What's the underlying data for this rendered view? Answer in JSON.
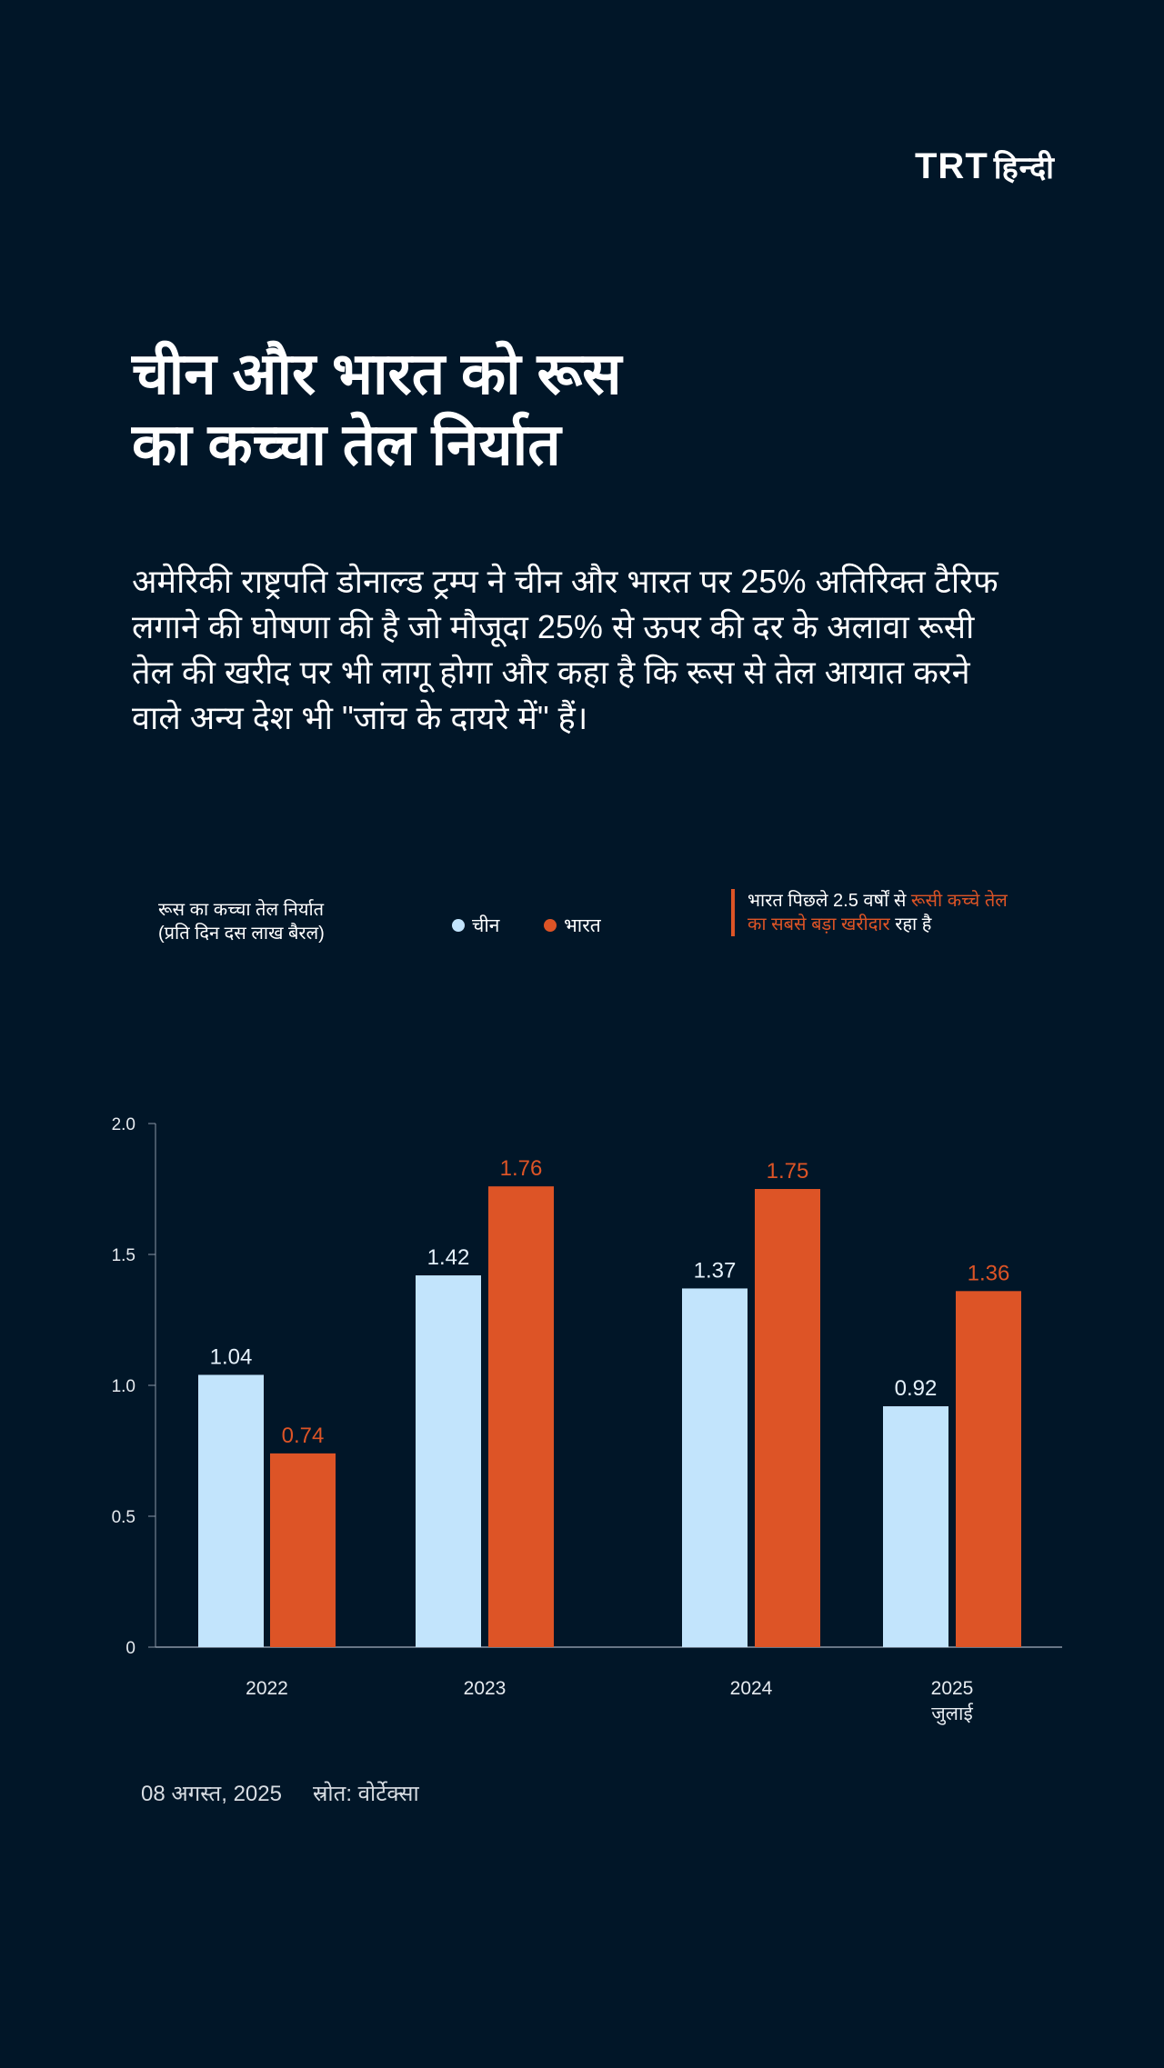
{
  "logo": {
    "brand": "TRT",
    "lang": "हिन्दी"
  },
  "title": [
    "चीन और भारत को रूस",
    "का कच्चा तेल निर्यात"
  ],
  "description": "अमेरिकी राष्ट्रपति डोनाल्ड ट्रम्प ने चीन और भारत पर 25% अतिरिक्त टैरिफ लगाने की घोषणा की है जो मौजूदा 25% से ऊपर की दर के अलावा रूसी तेल की खरीद पर भी लागू होगा और कहा है कि रूस से तेल आयात करने वाले अन्य देश भी \"जांच के दायरे में\" हैं।",
  "note": {
    "part1": "भारत पिछले 2.5 वर्षों से ",
    "highlight": "रूसी कच्चे तेल का सबसे बड़ा खरीदार",
    "part2": " रहा है"
  },
  "footer": {
    "date": "08 अगस्त, 2025",
    "source": "स्रोत: वोर्टेक्सा"
  },
  "colors": {
    "background": "#011628",
    "china": "#c2e4fc",
    "india": "#dd5426"
  },
  "chart_data": {
    "type": "bar",
    "ylabel": [
      "रूस का कच्चा तेल निर्यात",
      "(प्रति दिन दस लाख बैरल)"
    ],
    "categories": [
      "2022",
      "2023",
      "2024",
      "2025"
    ],
    "category_sublabels": [
      "",
      "",
      "",
      "जुलाई"
    ],
    "series": [
      {
        "name": "चीन",
        "values": [
          1.04,
          1.42,
          1.37,
          0.92
        ]
      },
      {
        "name": "भारत",
        "values": [
          0.74,
          1.76,
          1.75,
          1.36
        ]
      }
    ],
    "yticks": [
      "0",
      "0.5",
      "1.0",
      "1.5",
      "2.0"
    ],
    "ylim": [
      0,
      2.0
    ],
    "grid": false,
    "legend": "top"
  }
}
